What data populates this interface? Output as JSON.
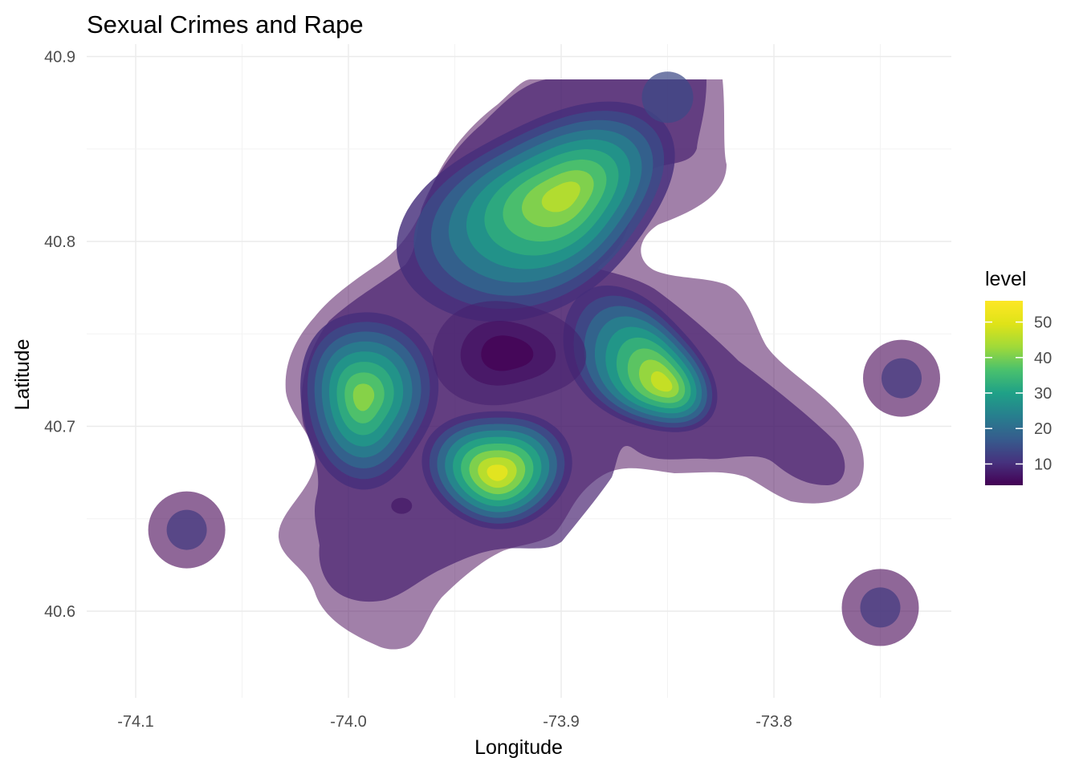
{
  "chart_data": {
    "type": "density_contour",
    "title": "Sexual Crimes and Rape",
    "xlabel": "Longitude",
    "ylabel": "Latitude",
    "xlim": [
      -74.15,
      -73.74
    ],
    "ylim": [
      40.553,
      40.9
    ],
    "x_ticks": [
      -74.1,
      -74.0,
      -73.9,
      -73.8
    ],
    "x_tick_labels": [
      "-74.1",
      "-74.0",
      "-73.9",
      "-73.8"
    ],
    "y_ticks": [
      40.6,
      40.7,
      40.8,
      40.9
    ],
    "y_tick_labels": [
      "40.6",
      "40.7",
      "40.8",
      "40.9"
    ],
    "grid": true,
    "legend": {
      "title": "level",
      "position": "right",
      "range": [
        4,
        56
      ],
      "ticks": [
        10,
        20,
        30,
        40,
        50
      ],
      "tick_labels": [
        "10",
        "20",
        "30",
        "40",
        "50"
      ],
      "colors": [
        "#440154",
        "#3b528b",
        "#21908c",
        "#5dc863",
        "#fde725"
      ]
    },
    "fill_alpha": 0.5,
    "density_peaks": [
      {
        "x": -73.9,
        "y": 40.824,
        "level": 46
      },
      {
        "x": -73.93,
        "y": 40.675,
        "level": 52
      },
      {
        "x": -73.993,
        "y": 40.716,
        "level": 42
      },
      {
        "x": -73.853,
        "y": 40.724,
        "level": 48
      },
      {
        "x": -73.924,
        "y": 40.736,
        "level": 6
      },
      {
        "x": -73.85,
        "y": 40.878,
        "level": 14
      },
      {
        "x": -74.076,
        "y": 40.644,
        "level": 12
      },
      {
        "x": -73.75,
        "y": 40.602,
        "level": 12
      },
      {
        "x": -73.74,
        "y": 40.726,
        "level": 12
      }
    ]
  }
}
